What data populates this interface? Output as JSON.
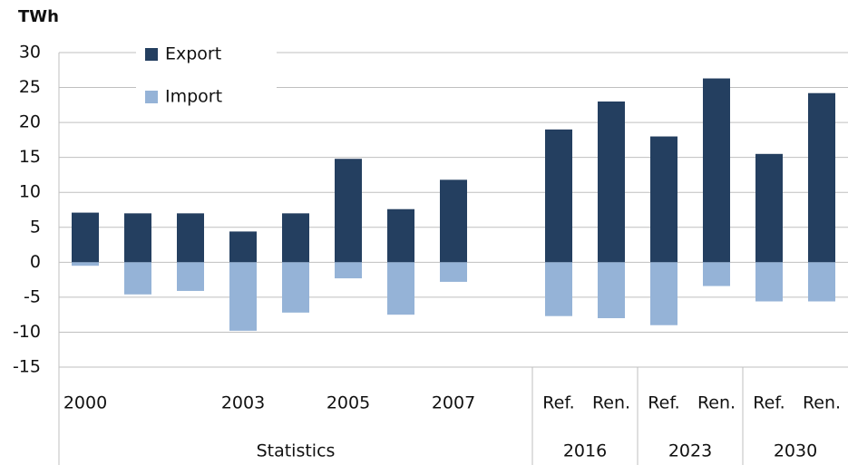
{
  "chart_data": {
    "type": "bar",
    "unit_label": "TWh",
    "categories": [
      "2000",
      null,
      null,
      "2003",
      null,
      "2005",
      null,
      "2007",
      null,
      "Ref.",
      "Ren.",
      "Ref.",
      "Ren.",
      "Ref.",
      "Ren."
    ],
    "groups": [
      {
        "label": "Statistics",
        "count": 9
      },
      {
        "label": "2016",
        "count": 2
      },
      {
        "label": "2023",
        "count": 2
      },
      {
        "label": "2030",
        "count": 2
      }
    ],
    "series": [
      {
        "name": "Export",
        "color": "#243f60",
        "values": [
          7.1,
          7.0,
          7.0,
          4.4,
          7.0,
          14.8,
          7.6,
          11.8,
          null,
          19.0,
          23.0,
          18.0,
          26.3,
          15.5,
          24.2
        ]
      },
      {
        "name": "Import",
        "color": "#95b3d7",
        "values": [
          -0.5,
          -4.6,
          -4.1,
          -9.8,
          -7.2,
          -2.3,
          -7.5,
          -2.8,
          null,
          -7.7,
          -8.0,
          -9.0,
          -3.4,
          -5.6,
          -5.6
        ]
      }
    ],
    "ylim": [
      -15,
      30
    ],
    "yticks": [
      30,
      25,
      20,
      15,
      10,
      5,
      0,
      -5,
      -10,
      -15
    ],
    "grid": true,
    "legend": "top-left"
  }
}
